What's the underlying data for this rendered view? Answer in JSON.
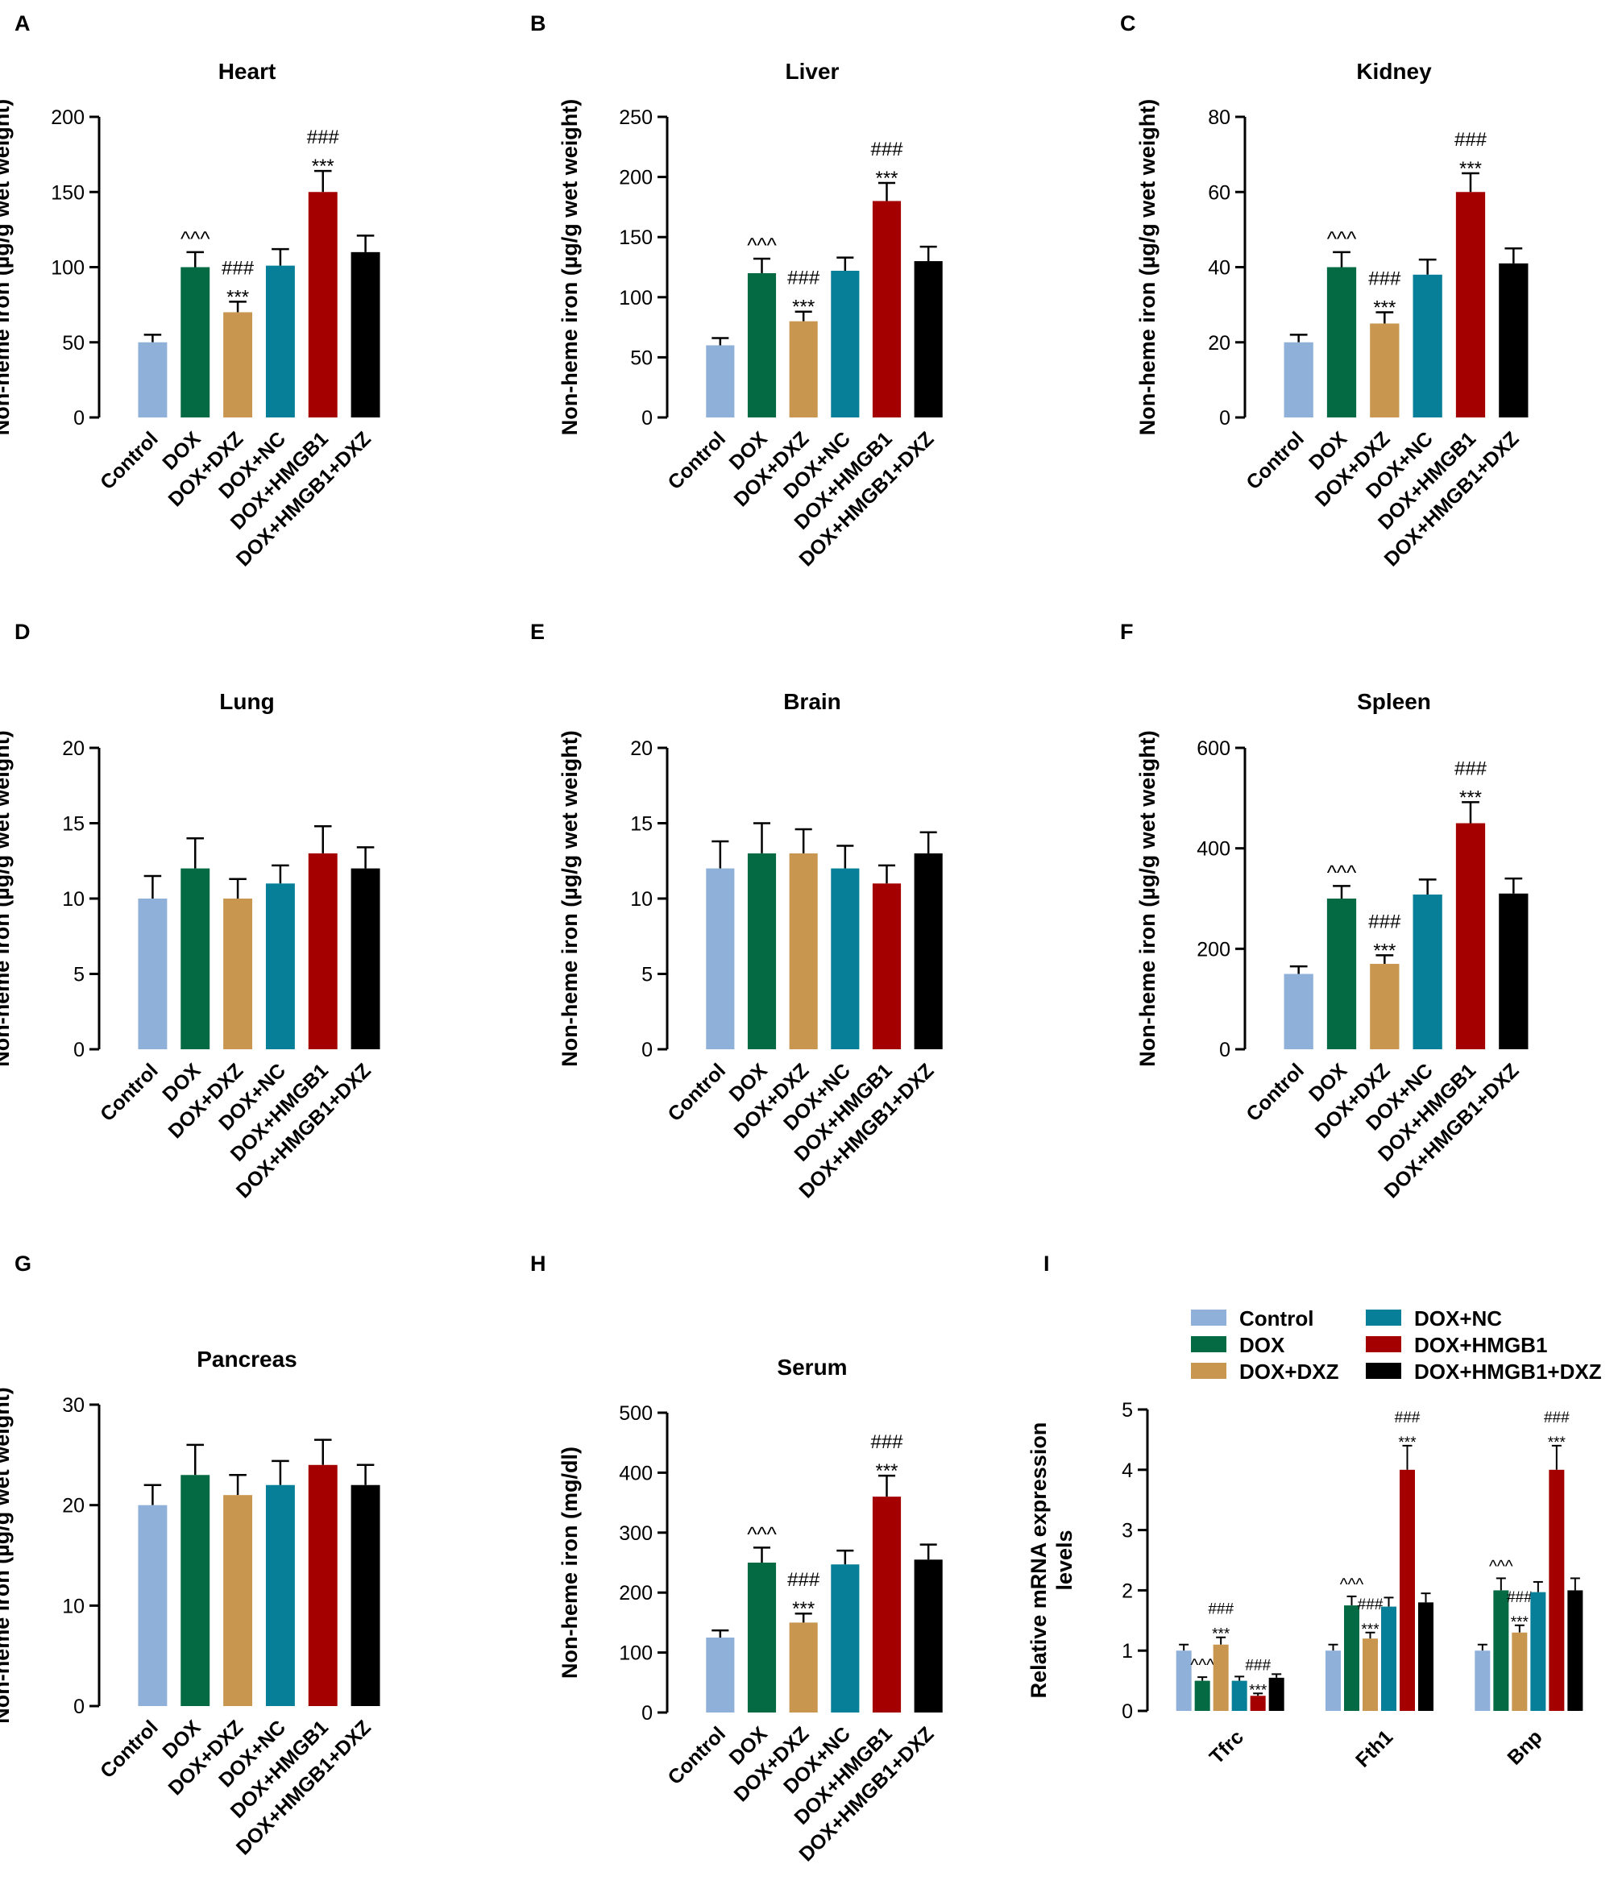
{
  "colors": {
    "Control": "#8fb0d8",
    "DOX": "#046a44",
    "DOX+DXZ": "#c8964f",
    "DOX+NC": "#087f98",
    "DOX+HMGB1": "#a40000",
    "DOX+HMGB1+DXZ": "#000000"
  },
  "chart_data": [
    {
      "letter": "A",
      "type": "bar",
      "title": "Heart",
      "ylabel": "Non-heme iron (µg/g wet weight)",
      "ylim": [
        0,
        200
      ],
      "yticks": [
        0,
        50,
        100,
        150,
        200
      ],
      "categories": [
        "Control",
        "DOX",
        "DOX+DXZ",
        "DOX+NC",
        "DOX+HMGB1",
        "DOX+HMGB1+DXZ"
      ],
      "values": [
        50,
        100,
        70,
        101,
        150,
        110
      ],
      "errors": [
        5,
        10,
        7,
        11,
        14,
        11
      ],
      "annotations": [
        [],
        [
          "^^^"
        ],
        [
          "###",
          "***"
        ],
        [],
        [
          "###",
          "***"
        ],
        []
      ]
    },
    {
      "letter": "B",
      "type": "bar",
      "title": "Liver",
      "ylabel": "Non-heme iron (µg/g wet weight)",
      "ylim": [
        0,
        250
      ],
      "yticks": [
        0,
        50,
        100,
        150,
        200,
        250
      ],
      "categories": [
        "Control",
        "DOX",
        "DOX+DXZ",
        "DOX+NC",
        "DOX+HMGB1",
        "DOX+HMGB1+DXZ"
      ],
      "values": [
        60,
        120,
        80,
        122,
        180,
        130
      ],
      "errors": [
        6,
        12,
        8,
        11,
        15,
        12
      ],
      "annotations": [
        [],
        [
          "^^^"
        ],
        [
          "###",
          "***"
        ],
        [],
        [
          "###",
          "***"
        ],
        []
      ]
    },
    {
      "letter": "C",
      "type": "bar",
      "title": "Kidney",
      "ylabel": "Non-heme iron (µg/g wet weight)",
      "ylim": [
        0,
        80
      ],
      "yticks": [
        0,
        20,
        40,
        60,
        80
      ],
      "categories": [
        "Control",
        "DOX",
        "DOX+DXZ",
        "DOX+NC",
        "DOX+HMGB1",
        "DOX+HMGB1+DXZ"
      ],
      "values": [
        20,
        40,
        25,
        38,
        60,
        41
      ],
      "errors": [
        2,
        4,
        3,
        4,
        5,
        4
      ],
      "annotations": [
        [],
        [
          "^^^"
        ],
        [
          "###",
          "***"
        ],
        [],
        [
          "###",
          "***"
        ],
        []
      ]
    },
    {
      "letter": "D",
      "type": "bar",
      "title": "Lung",
      "ylabel": "Non-heme iron (µg/g wet weight)",
      "ylim": [
        0,
        20
      ],
      "yticks": [
        0,
        5,
        10,
        15,
        20
      ],
      "categories": [
        "Control",
        "DOX",
        "DOX+DXZ",
        "DOX+NC",
        "DOX+HMGB1",
        "DOX+HMGB1+DXZ"
      ],
      "values": [
        10,
        12,
        10,
        11,
        13,
        12
      ],
      "errors": [
        1.5,
        2,
        1.3,
        1.2,
        1.8,
        1.4
      ],
      "annotations": [
        [],
        [],
        [],
        [],
        [],
        []
      ]
    },
    {
      "letter": "E",
      "type": "bar",
      "title": "Brain",
      "ylabel": "Non-heme iron (µg/g wet weight)",
      "ylim": [
        0,
        20
      ],
      "yticks": [
        0,
        5,
        10,
        15,
        20
      ],
      "categories": [
        "Control",
        "DOX",
        "DOX+DXZ",
        "DOX+NC",
        "DOX+HMGB1",
        "DOX+HMGB1+DXZ"
      ],
      "values": [
        12,
        13,
        13,
        12,
        11,
        13
      ],
      "errors": [
        1.8,
        2,
        1.6,
        1.5,
        1.2,
        1.4
      ],
      "annotations": [
        [],
        [],
        [],
        [],
        [],
        []
      ]
    },
    {
      "letter": "F",
      "type": "bar",
      "title": "Spleen",
      "ylabel": "Non-heme iron (µg/g wet weight)",
      "ylim": [
        0,
        600
      ],
      "yticks": [
        0,
        200,
        400,
        600
      ],
      "categories": [
        "Control",
        "DOX",
        "DOX+DXZ",
        "DOX+NC",
        "DOX+HMGB1",
        "DOX+HMGB1+DXZ"
      ],
      "values": [
        150,
        300,
        170,
        308,
        450,
        310
      ],
      "errors": [
        15,
        25,
        17,
        30,
        42,
        30
      ],
      "annotations": [
        [],
        [
          "^^^"
        ],
        [
          "###",
          "***"
        ],
        [],
        [
          "###",
          "***"
        ],
        []
      ]
    },
    {
      "letter": "G",
      "type": "bar",
      "title": "Pancreas",
      "ylabel": "Non-heme iron (µg/g wet weight)",
      "ylim": [
        0,
        30
      ],
      "yticks": [
        0,
        10,
        20,
        30
      ],
      "categories": [
        "Control",
        "DOX",
        "DOX+DXZ",
        "DOX+NC",
        "DOX+HMGB1",
        "DOX+HMGB1+DXZ"
      ],
      "values": [
        20,
        23,
        21,
        22,
        24,
        22
      ],
      "errors": [
        2,
        3,
        2,
        2.4,
        2.5,
        2
      ],
      "annotations": [
        [],
        [],
        [],
        [],
        [],
        []
      ]
    },
    {
      "letter": "H",
      "type": "bar",
      "title": "Serum",
      "ylabel": "Non-heme iron (mg/dl)",
      "ylim": [
        0,
        500
      ],
      "yticks": [
        0,
        100,
        200,
        300,
        400,
        500
      ],
      "categories": [
        "Control",
        "DOX",
        "DOX+DXZ",
        "DOX+NC",
        "DOX+HMGB1",
        "DOX+HMGB1+DXZ"
      ],
      "values": [
        125,
        250,
        150,
        247,
        360,
        255
      ],
      "errors": [
        12,
        25,
        15,
        23,
        35,
        25
      ],
      "annotations": [
        [],
        [
          "^^^"
        ],
        [
          "###",
          "***"
        ],
        [],
        [
          "###",
          "***"
        ],
        []
      ]
    },
    {
      "letter": "I",
      "type": "bar",
      "title": "",
      "ylabel": "Relative mRNA expression levels",
      "ylim": [
        0,
        5
      ],
      "yticks": [
        0,
        1,
        2,
        3,
        4,
        5
      ],
      "categories": [
        "Tfrc",
        "Fth1",
        "Bnp"
      ],
      "legend": [
        "Control",
        "DOX",
        "DOX+DXZ",
        "DOX+NC",
        "DOX+HMGB1",
        "DOX+HMGB1+DXZ"
      ],
      "series": [
        {
          "name": "Control",
          "values": [
            1.0,
            1.0,
            1.0
          ],
          "errors": [
            0.1,
            0.1,
            0.1
          ],
          "annotations": [
            [],
            [],
            []
          ]
        },
        {
          "name": "DOX",
          "values": [
            0.5,
            1.75,
            2.0
          ],
          "errors": [
            0.06,
            0.15,
            0.2
          ],
          "annotations": [
            [
              "^^^"
            ],
            [
              "^^^"
            ],
            [
              "^^^"
            ]
          ]
        },
        {
          "name": "DOX+DXZ",
          "values": [
            1.1,
            1.2,
            1.3
          ],
          "errors": [
            0.12,
            0.1,
            0.12
          ],
          "annotations": [
            [
              "###",
              "***"
            ],
            [
              "###",
              "***"
            ],
            [
              "###",
              "***"
            ]
          ]
        },
        {
          "name": "DOX+NC",
          "values": [
            0.5,
            1.73,
            1.97
          ],
          "errors": [
            0.07,
            0.15,
            0.17
          ],
          "annotations": [
            [],
            [],
            []
          ]
        },
        {
          "name": "DOX+HMGB1",
          "values": [
            0.25,
            4.0,
            4.0
          ],
          "errors": [
            0.04,
            0.4,
            0.4
          ],
          "annotations": [
            [
              "###",
              "***"
            ],
            [
              "###",
              "***"
            ],
            [
              "###",
              "***"
            ]
          ]
        },
        {
          "name": "DOX+HMGB1+DXZ",
          "values": [
            0.55,
            1.8,
            2.0
          ],
          "errors": [
            0.06,
            0.15,
            0.2
          ],
          "annotations": [
            [],
            [],
            []
          ]
        }
      ]
    }
  ]
}
